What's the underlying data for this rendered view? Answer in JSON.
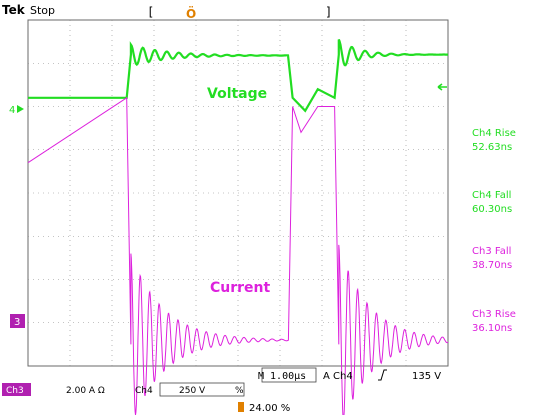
{
  "header": {
    "brand": "Tek",
    "status": "Stop",
    "trigger_marker_icon": "trigger-position-icon"
  },
  "colors": {
    "ch4": "#22dd22",
    "ch3": "#dd22dd",
    "grid": "#8a8a8a",
    "trigger": "#e08000",
    "badge_ch3": "#b020b0"
  },
  "channels": {
    "ch4_marker": "4",
    "ch3_marker": "3",
    "arrow_icon": "left-arrow-icon"
  },
  "chart_data": {
    "type": "line",
    "x_unit": "divisions",
    "y_unit": "divisions",
    "xlim": [
      0,
      10
    ],
    "ylim": [
      0,
      8
    ],
    "grid": true,
    "series": [
      {
        "name": "Voltage",
        "channel": "Ch4",
        "color": "#22dd22",
        "points": [
          [
            0,
            6.2
          ],
          [
            2.35,
            6.2
          ],
          [
            2.45,
            7.2
          ],
          [
            6.2,
            7.2
          ],
          [
            6.3,
            6.2
          ],
          [
            7.3,
            6.2
          ],
          [
            7.4,
            7.2
          ],
          [
            10,
            7.2
          ]
        ]
      },
      {
        "name": "Current",
        "channel": "Ch3",
        "color": "#dd22dd",
        "points": [
          [
            0,
            4.7
          ],
          [
            2.35,
            6.2
          ],
          [
            2.45,
            0.5
          ],
          [
            6.2,
            0.5
          ],
          [
            6.3,
            6.0
          ],
          [
            7.3,
            6.0
          ],
          [
            7.4,
            0.5
          ],
          [
            10,
            0.5
          ]
        ]
      }
    ],
    "annotations": {
      "voltage_label": "Voltage",
      "current_label": "Current"
    }
  },
  "measurements": [
    {
      "label": "Ch4 Rise",
      "value": "52.63ns"
    },
    {
      "label": "Ch4 Fall",
      "value": "60.30ns"
    },
    {
      "label": "Ch3 Fall",
      "value": "38.70ns"
    },
    {
      "label": "Ch3 Rise",
      "value": "36.10ns"
    }
  ],
  "status_bar": {
    "timebase": "M 1.00µs",
    "trigger_source": "A  Ch4",
    "trigger_slope_icon": "rising-edge-icon",
    "trigger_level": "135 V",
    "ch3_badge": "Ch3",
    "ch3_scale": "2.00 A Ω",
    "ch4_label": "Ch4",
    "ch4_scale": "250 V",
    "ch4_coupling": "%",
    "trigger_position": "24.00 %"
  }
}
